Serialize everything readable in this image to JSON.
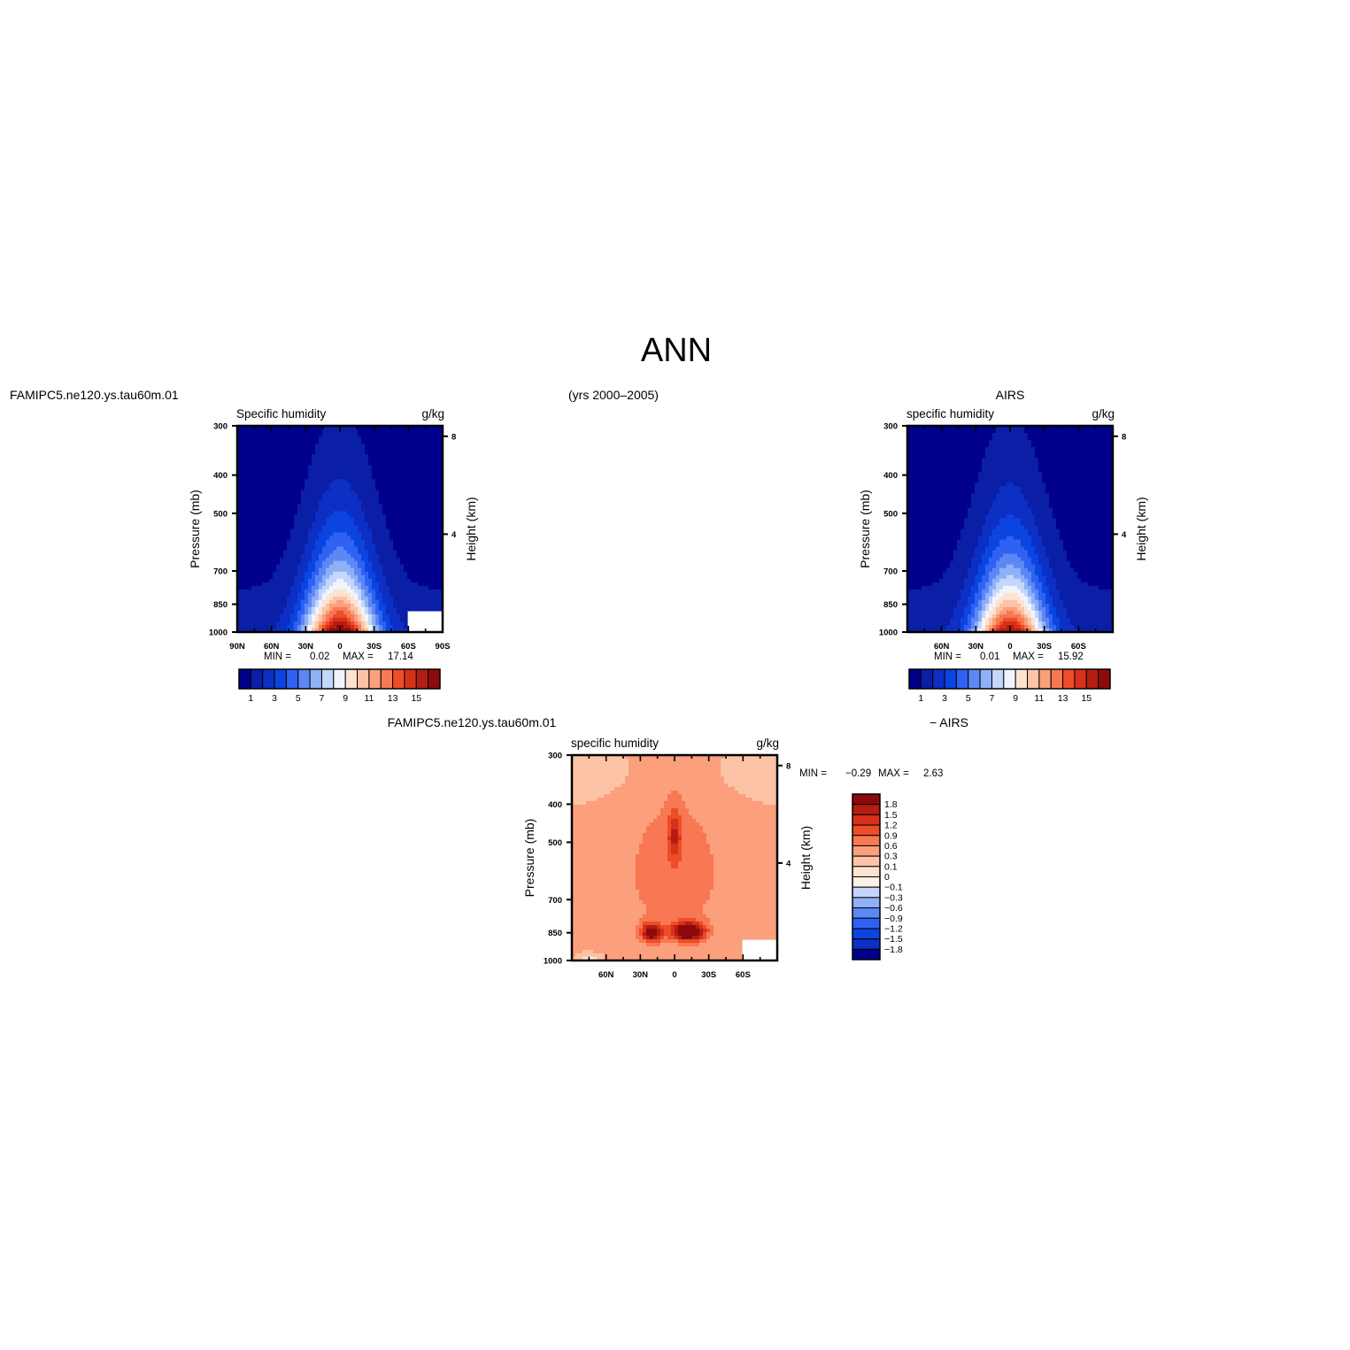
{
  "figure": {
    "title": "ANN",
    "case_label": "FAMIPC5.ne120.ys.tau60m.01",
    "years": "(yrs 2000–2005)",
    "obs_label": "AIRS",
    "diff_case_label": "FAMIPC5.ne120.ys.tau60m.01",
    "diff_obs_label": "− AIRS"
  },
  "chart_data": [
    {
      "id": "model",
      "type": "heatmap",
      "title": "Specific humidity",
      "units": "g/kg",
      "ylabel": "Pressure (mb)",
      "ylabel_right": "Height (km)",
      "x_ticks": [
        "90N",
        "60N",
        "30N",
        "0",
        "30S",
        "60S",
        "90S"
      ],
      "x_tick_lat": [
        90,
        60,
        30,
        0,
        -30,
        -60,
        -90
      ],
      "y_ticks": [
        300,
        400,
        500,
        700,
        850,
        1000
      ],
      "y_right_ticks": [
        8,
        4
      ],
      "xlim": [
        90,
        -90
      ],
      "ylim": [
        1000,
        300
      ],
      "min_label": "MIN =",
      "min_value": "0.02",
      "max_label": "MAX =",
      "max_value": "17.14",
      "peak": 17.14,
      "colorbar": {
        "labels": [
          "1",
          "3",
          "5",
          "7",
          "9",
          "11",
          "13",
          "15"
        ],
        "colors": [
          "#00008c",
          "#0a1ea6",
          "#0c2fc4",
          "#0b45e0",
          "#2f62f2",
          "#5c88f5",
          "#8fb0f7",
          "#c4d6fb",
          "#f1f4fd",
          "#fde3cf",
          "#fcc3a6",
          "#fb9f7c",
          "#f77852",
          "#ee4d27",
          "#d6311a",
          "#b51d12",
          "#8e0a0a"
        ]
      }
    },
    {
      "id": "obs",
      "type": "heatmap",
      "title": "specific humidity",
      "units": "g/kg",
      "ylabel": "Pressure (mb)",
      "ylabel_right": "Height (km)",
      "x_ticks": [
        "60N",
        "30N",
        "0",
        "30S",
        "60S"
      ],
      "x_tick_lat": [
        60,
        30,
        0,
        -30,
        -60
      ],
      "y_ticks": [
        300,
        400,
        500,
        700,
        850,
        1000
      ],
      "y_right_ticks": [
        8,
        4
      ],
      "xlim": [
        90,
        -90
      ],
      "ylim": [
        1000,
        300
      ],
      "min_label": "MIN =",
      "min_value": "0.01",
      "max_label": "MAX =",
      "max_value": "15.92",
      "peak": 15.92,
      "colorbar": {
        "labels": [
          "1",
          "3",
          "5",
          "7",
          "9",
          "11",
          "13",
          "15"
        ],
        "colors": [
          "#00008c",
          "#0a1ea6",
          "#0c2fc4",
          "#0b45e0",
          "#2f62f2",
          "#5c88f5",
          "#8fb0f7",
          "#c4d6fb",
          "#f1f4fd",
          "#fde3cf",
          "#fcc3a6",
          "#fb9f7c",
          "#f77852",
          "#ee4d27",
          "#d6311a",
          "#b51d12",
          "#8e0a0a"
        ]
      }
    },
    {
      "id": "diff",
      "type": "heatmap",
      "title": "specific humidity",
      "units": "g/kg",
      "ylabel": "Pressure (mb)",
      "ylabel_right": "Height (km)",
      "x_ticks": [
        "60N",
        "30N",
        "0",
        "30S",
        "60S"
      ],
      "x_tick_lat": [
        60,
        30,
        0,
        -30,
        -60
      ],
      "y_ticks": [
        300,
        400,
        500,
        700,
        850,
        1000
      ],
      "y_right_ticks": [
        8,
        4
      ],
      "xlim": [
        90,
        -90
      ],
      "ylim": [
        1000,
        300
      ],
      "min_label": "MIN =",
      "min_value": "−0.29",
      "max_label": "MAX =",
      "max_value": "2.63",
      "colorbar": {
        "labels": [
          "1.8",
          "1.5",
          "1.2",
          "0.9",
          "0.6",
          "0.3",
          "0.1",
          "0",
          "−0.1",
          "−0.3",
          "−0.6",
          "−0.9",
          "−1.2",
          "−1.5",
          "−1.8"
        ],
        "colors": [
          "#8e0a0a",
          "#b51d12",
          "#d6311a",
          "#ee4d27",
          "#f77852",
          "#fb9f7c",
          "#fcc3a6",
          "#fde3cf",
          "#fdf0e6",
          "#c4d6fb",
          "#8fb0f7",
          "#5c88f5",
          "#2f62f2",
          "#0b45e0",
          "#0c2fc4",
          "#00008c"
        ]
      }
    }
  ]
}
